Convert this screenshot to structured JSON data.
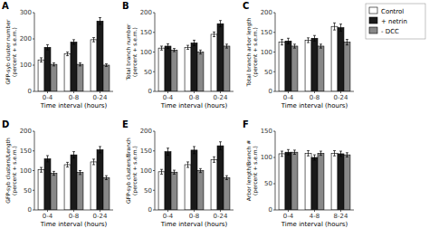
{
  "chart_data": [
    {
      "type": "bar",
      "title": "A",
      "x_label": "Time interval (hours)",
      "y_label": "GFP-syb cluster number\n(percent + s.e.m.)",
      "categories": [
        "0-4",
        "0-8",
        "0-24"
      ],
      "ylim": [
        0,
        300
      ],
      "yticks": [
        0,
        100,
        200,
        300
      ],
      "grid": false,
      "legend": "top-right",
      "series": [
        {
          "name": "Control",
          "color": "#ffffff",
          "values": [
            120,
            143,
            197
          ],
          "errors": [
            8,
            7,
            8
          ]
        },
        {
          "name": "+ netrin",
          "color": "#1a1a1a",
          "values": [
            168,
            188,
            268
          ],
          "errors": [
            10,
            9,
            13
          ]
        },
        {
          "name": "- DCC",
          "color": "#888888",
          "values": [
            103,
            103,
            100
          ],
          "errors": [
            6,
            6,
            5
          ]
        }
      ]
    },
    {
      "type": "bar",
      "title": "B",
      "x_label": "Time interval (hours)",
      "y_label": "Total branch number\n(percent + s.e.m.)",
      "categories": [
        "0-4",
        "0-8",
        "0-24"
      ],
      "ylim": [
        0,
        200
      ],
      "yticks": [
        0,
        50,
        100,
        150,
        200
      ],
      "grid": false,
      "series": [
        {
          "name": "Control",
          "color": "#ffffff",
          "values": [
            110,
            112,
            145
          ],
          "errors": [
            5,
            5,
            6
          ]
        },
        {
          "name": "+ netrin",
          "color": "#1a1a1a",
          "values": [
            115,
            123,
            172
          ],
          "errors": [
            6,
            7,
            8
          ]
        },
        {
          "name": "- DCC",
          "color": "#888888",
          "values": [
            105,
            100,
            115
          ],
          "errors": [
            4,
            5,
            5
          ]
        }
      ]
    },
    {
      "type": "bar",
      "title": "C",
      "x_label": "Time interval (hours)",
      "y_label": "Total branch arbor length\n(percent + s.e.m.)",
      "categories": [
        "0-4",
        "0-8",
        "0-24"
      ],
      "ylim": [
        0,
        200
      ],
      "yticks": [
        0,
        50,
        100,
        150,
        200
      ],
      "grid": false,
      "series": [
        {
          "name": "Control",
          "color": "#ffffff",
          "values": [
            125,
            130,
            165
          ],
          "errors": [
            7,
            6,
            9
          ]
        },
        {
          "name": "+ netrin",
          "color": "#1a1a1a",
          "values": [
            128,
            135,
            162
          ],
          "errors": [
            7,
            7,
            9
          ]
        },
        {
          "name": "- DCC",
          "color": "#888888",
          "values": [
            115,
            115,
            125
          ],
          "errors": [
            5,
            5,
            7
          ]
        }
      ]
    },
    {
      "type": "bar",
      "title": "D",
      "x_label": "Time interval (hours)",
      "y_label": "GFP-syb clusters/Length\n(percent + s.e.m.)",
      "categories": [
        "0-4",
        "0-8",
        "0-24"
      ],
      "ylim": [
        0,
        200
      ],
      "yticks": [
        0,
        50,
        100,
        150,
        200
      ],
      "grid": false,
      "series": [
        {
          "name": "Control",
          "color": "#ffffff",
          "values": [
            102,
            115,
            122
          ],
          "errors": [
            6,
            6,
            7
          ]
        },
        {
          "name": "+ netrin",
          "color": "#1a1a1a",
          "values": [
            130,
            140,
            153
          ],
          "errors": [
            8,
            8,
            8
          ]
        },
        {
          "name": "- DCC",
          "color": "#888888",
          "values": [
            93,
            95,
            82
          ],
          "errors": [
            5,
            5,
            5
          ]
        }
      ]
    },
    {
      "type": "bar",
      "title": "E",
      "x_label": "Time interval (hours)",
      "y_label": "GFP-syb clusters/Branch\n(percent + s.e.m.)",
      "categories": [
        "0-4",
        "0-8",
        "0-24"
      ],
      "ylim": [
        0,
        200
      ],
      "yticks": [
        0,
        50,
        100,
        150,
        200
      ],
      "grid": false,
      "series": [
        {
          "name": "Control",
          "color": "#ffffff",
          "values": [
            97,
            115,
            128
          ],
          "errors": [
            6,
            7,
            7
          ]
        },
        {
          "name": "+ netrin",
          "color": "#1a1a1a",
          "values": [
            148,
            152,
            163
          ],
          "errors": [
            9,
            9,
            10
          ]
        },
        {
          "name": "- DCC",
          "color": "#888888",
          "values": [
            96,
            100,
            82
          ],
          "errors": [
            5,
            5,
            5
          ]
        }
      ]
    },
    {
      "type": "bar",
      "title": "F",
      "x_label": "Time interval (hours)",
      "y_label": "Arbor length/Branch #\n(percent + s.e.m.)",
      "categories": [
        "0-4",
        "4-8",
        "8-24"
      ],
      "ylim": [
        0,
        150
      ],
      "yticks": [
        0,
        50,
        100,
        150
      ],
      "grid": false,
      "series": [
        {
          "name": "Control",
          "color": "#ffffff",
          "values": [
            107,
            108,
            108
          ],
          "errors": [
            5,
            5,
            5
          ]
        },
        {
          "name": "+ netrin",
          "color": "#1a1a1a",
          "values": [
            110,
            100,
            107
          ],
          "errors": [
            5,
            5,
            5
          ]
        },
        {
          "name": "- DCC",
          "color": "#888888",
          "values": [
            110,
            108,
            105
          ],
          "errors": [
            4,
            4,
            4
          ]
        }
      ]
    }
  ]
}
